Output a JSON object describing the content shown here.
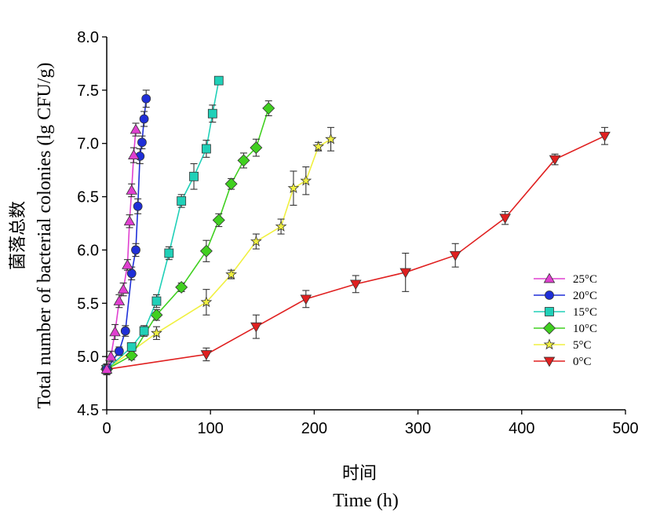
{
  "chart_data": {
    "type": "line",
    "xlabel_cn": "时间",
    "xlabel": "Time (h)",
    "ylabel_cn": "菌落总数",
    "ylabel": "Total number of bacterial colonies (lg CFU/g)",
    "xlim": [
      0,
      500
    ],
    "ylim": [
      4.5,
      8.0
    ],
    "x_ticks": [
      "0",
      "100",
      "200",
      "300",
      "400",
      "500"
    ],
    "y_ticks": [
      "4.5",
      "5.0",
      "5.5",
      "6.0",
      "6.5",
      "7.0",
      "7.5",
      "8.0"
    ],
    "legend_position": "right",
    "series": [
      {
        "name": "25°C",
        "color": "#e040d0",
        "marker": "triangle-up",
        "points": [
          {
            "x": 0,
            "y": 4.88,
            "err": 0.05
          },
          {
            "x": 4,
            "y": 5.0,
            "err": 0.05
          },
          {
            "x": 8,
            "y": 5.23,
            "err": 0.07
          },
          {
            "x": 12,
            "y": 5.52,
            "err": 0.06
          },
          {
            "x": 16,
            "y": 5.63,
            "err": 0.06
          },
          {
            "x": 20,
            "y": 5.86,
            "err": 0.05
          },
          {
            "x": 22,
            "y": 6.27,
            "err": 0.06
          },
          {
            "x": 24,
            "y": 6.56,
            "err": 0.06
          },
          {
            "x": 26,
            "y": 6.89,
            "err": 0.07
          },
          {
            "x": 28,
            "y": 7.13,
            "err": 0.06
          }
        ]
      },
      {
        "name": "20°C",
        "color": "#1f2fd8",
        "marker": "circle",
        "points": [
          {
            "x": 0,
            "y": 4.88,
            "err": 0.05
          },
          {
            "x": 12,
            "y": 5.05,
            "err": 0.04
          },
          {
            "x": 18,
            "y": 5.24,
            "err": 0.05
          },
          {
            "x": 24,
            "y": 5.78,
            "err": 0.06
          },
          {
            "x": 28,
            "y": 6.0,
            "err": 0.06
          },
          {
            "x": 30,
            "y": 6.41,
            "err": 0.07
          },
          {
            "x": 32,
            "y": 6.88,
            "err": 0.07
          },
          {
            "x": 34,
            "y": 7.01,
            "err": 0.06
          },
          {
            "x": 36,
            "y": 7.23,
            "err": 0.07
          },
          {
            "x": 38,
            "y": 7.42,
            "err": 0.08
          }
        ]
      },
      {
        "name": "15°C",
        "color": "#20d0b8",
        "marker": "square",
        "points": [
          {
            "x": 0,
            "y": 4.88,
            "err": 0.05
          },
          {
            "x": 24,
            "y": 5.09,
            "err": 0.04
          },
          {
            "x": 36,
            "y": 5.24,
            "err": 0.05
          },
          {
            "x": 48,
            "y": 5.52,
            "err": 0.06
          },
          {
            "x": 60,
            "y": 5.97,
            "err": 0.06
          },
          {
            "x": 72,
            "y": 6.46,
            "err": 0.06
          },
          {
            "x": 84,
            "y": 6.69,
            "err": 0.12
          },
          {
            "x": 96,
            "y": 6.95,
            "err": 0.08
          },
          {
            "x": 102,
            "y": 7.28,
            "err": 0.08
          },
          {
            "x": 108,
            "y": 7.59,
            "err": 0.03
          }
        ]
      },
      {
        "name": "10°C",
        "color": "#40d020",
        "marker": "diamond",
        "points": [
          {
            "x": 0,
            "y": 4.88,
            "err": 0.05
          },
          {
            "x": 24,
            "y": 5.01,
            "err": 0.04
          },
          {
            "x": 48,
            "y": 5.39,
            "err": 0.05
          },
          {
            "x": 72,
            "y": 5.65,
            "err": 0.04
          },
          {
            "x": 96,
            "y": 5.99,
            "err": 0.1
          },
          {
            "x": 108,
            "y": 6.28,
            "err": 0.06
          },
          {
            "x": 120,
            "y": 6.62,
            "err": 0.05
          },
          {
            "x": 132,
            "y": 6.84,
            "err": 0.07
          },
          {
            "x": 144,
            "y": 6.96,
            "err": 0.08
          },
          {
            "x": 156,
            "y": 7.33,
            "err": 0.07
          }
        ]
      },
      {
        "name": "5°C",
        "color": "#f0f040",
        "marker": "star",
        "points": [
          {
            "x": 0,
            "y": 4.88,
            "err": 0.05
          },
          {
            "x": 48,
            "y": 5.22,
            "err": 0.06
          },
          {
            "x": 96,
            "y": 5.51,
            "err": 0.12
          },
          {
            "x": 120,
            "y": 5.77,
            "err": 0.04
          },
          {
            "x": 144,
            "y": 6.08,
            "err": 0.07
          },
          {
            "x": 168,
            "y": 6.22,
            "err": 0.07
          },
          {
            "x": 180,
            "y": 6.58,
            "err": 0.16
          },
          {
            "x": 192,
            "y": 6.65,
            "err": 0.13
          },
          {
            "x": 204,
            "y": 6.97,
            "err": 0.04
          },
          {
            "x": 216,
            "y": 7.04,
            "err": 0.11
          }
        ]
      },
      {
        "name": "0°C",
        "color": "#e02020",
        "marker": "triangle-down",
        "points": [
          {
            "x": 0,
            "y": 4.88,
            "err": 0.05
          },
          {
            "x": 96,
            "y": 5.02,
            "err": 0.06
          },
          {
            "x": 144,
            "y": 5.28,
            "err": 0.11
          },
          {
            "x": 192,
            "y": 5.54,
            "err": 0.08
          },
          {
            "x": 240,
            "y": 5.68,
            "err": 0.08
          },
          {
            "x": 288,
            "y": 5.79,
            "err": 0.18
          },
          {
            "x": 336,
            "y": 5.95,
            "err": 0.11
          },
          {
            "x": 384,
            "y": 6.3,
            "err": 0.06
          },
          {
            "x": 432,
            "y": 6.85,
            "err": 0.05
          },
          {
            "x": 480,
            "y": 7.07,
            "err": 0.08
          }
        ]
      }
    ]
  }
}
